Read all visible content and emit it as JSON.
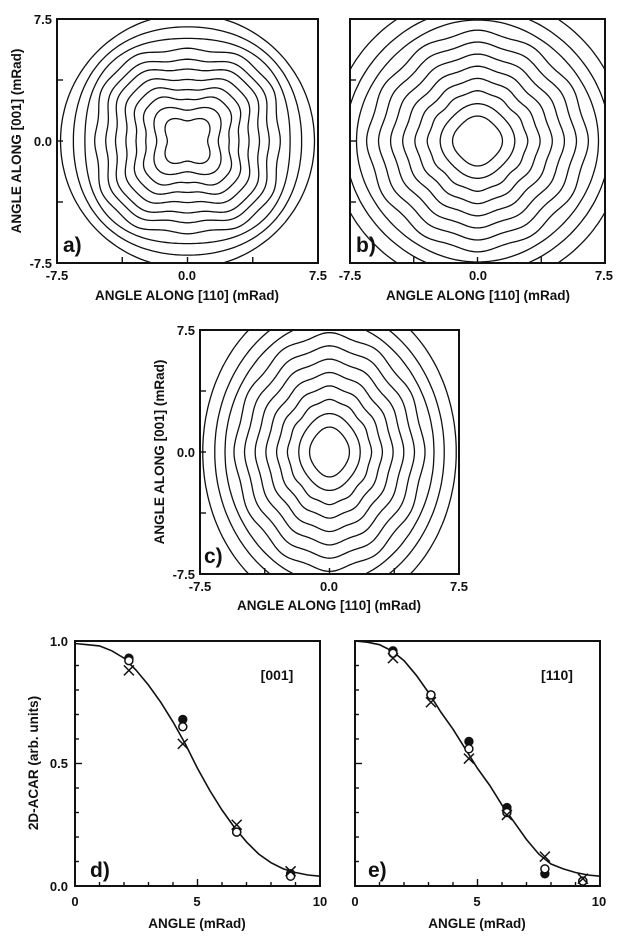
{
  "chart_data": [
    {
      "id": "a",
      "type": "contour",
      "panel_label": "a)",
      "xlabel": "ANGLE ALONG [110] (mRad)",
      "ylabel": "ANGLE ALONG [001] (mRad)",
      "xlim": [
        -7.5,
        7.5
      ],
      "ylim": [
        -7.5,
        7.5
      ],
      "x_tick_labels": [
        "-7.5",
        "0.0",
        "7.5"
      ],
      "y_tick_labels": [
        "-7.5",
        "0.0",
        "7.5"
      ],
      "anisotropy": "four-fold square, concave inner contours",
      "contour_levels": 11
    },
    {
      "id": "b",
      "type": "contour",
      "panel_label": "b)",
      "xlabel": "ANGLE ALONG [110] (mRad)",
      "xlim": [
        -7.5,
        7.5
      ],
      "ylim": [
        -7.5,
        7.5
      ],
      "x_tick_labels": [
        "-7.5",
        "0.0",
        "7.5"
      ],
      "anisotropy": "near-circular, slightly square",
      "contour_levels": 11
    },
    {
      "id": "c",
      "type": "contour",
      "panel_label": "c)",
      "xlabel": "ANGLE ALONG [110] (mRad)",
      "ylabel": "ANGLE ALONG [001] (mRad)",
      "xlim": [
        -7.5,
        7.5
      ],
      "ylim": [
        -7.5,
        7.5
      ],
      "x_tick_labels": [
        "-7.5",
        "0.0",
        "7.5"
      ],
      "y_tick_labels": [
        "-7.5",
        "0.0",
        "7.5"
      ],
      "anisotropy": "near-circular, slightly elongated along [001]",
      "contour_levels": 11
    },
    {
      "id": "d",
      "type": "line",
      "panel_label": "d)",
      "legend_label": "[001]",
      "xlabel": "ANGLE (mRad)",
      "ylabel": "2D-ACAR (arb. units)",
      "xlim": [
        0,
        10
      ],
      "ylim": [
        0,
        1
      ],
      "x_tick_labels": [
        "0",
        "5",
        "10"
      ],
      "y_tick_labels": [
        "0.0",
        "0.5",
        "1.0"
      ],
      "curve": {
        "x": [
          0.0,
          0.5,
          1.0,
          1.5,
          2.0,
          2.5,
          3.0,
          3.5,
          4.0,
          4.5,
          5.0,
          5.5,
          6.0,
          6.5,
          7.0,
          7.5,
          8.0,
          8.5,
          9.0,
          9.5,
          10.0
        ],
        "y": [
          0.99,
          0.985,
          0.98,
          0.96,
          0.93,
          0.88,
          0.82,
          0.75,
          0.67,
          0.58,
          0.48,
          0.39,
          0.31,
          0.24,
          0.18,
          0.13,
          0.095,
          0.07,
          0.055,
          0.045,
          0.04
        ]
      },
      "series": [
        {
          "marker": "filled-circle",
          "x": [
            2.2,
            4.4,
            6.6,
            8.8
          ],
          "y": [
            0.93,
            0.68,
            0.22,
            0.05
          ]
        },
        {
          "marker": "open-circle",
          "x": [
            2.2,
            4.4,
            6.6,
            8.8
          ],
          "y": [
            0.92,
            0.65,
            0.22,
            0.04
          ]
        },
        {
          "marker": "cross",
          "x": [
            2.2,
            4.4,
            6.6,
            8.8
          ],
          "y": [
            0.88,
            0.58,
            0.25,
            0.06
          ]
        }
      ]
    },
    {
      "id": "e",
      "type": "line",
      "panel_label": "e)",
      "legend_label": "[110]",
      "xlabel": "ANGLE (mRad)",
      "xlim": [
        0,
        10
      ],
      "ylim": [
        0,
        1
      ],
      "x_tick_labels": [
        "0",
        "5",
        "10"
      ],
      "curve": {
        "x": [
          0.0,
          0.5,
          1.0,
          1.5,
          2.0,
          2.5,
          3.0,
          3.5,
          4.0,
          4.5,
          5.0,
          5.5,
          6.0,
          6.5,
          7.0,
          7.5,
          8.0,
          8.5,
          9.0,
          9.5,
          10.0
        ],
        "y": [
          1.0,
          0.995,
          0.985,
          0.96,
          0.92,
          0.86,
          0.79,
          0.71,
          0.64,
          0.56,
          0.48,
          0.41,
          0.33,
          0.26,
          0.19,
          0.13,
          0.09,
          0.07,
          0.055,
          0.045,
          0.04
        ]
      },
      "series": [
        {
          "marker": "filled-circle",
          "x": [
            1.55,
            3.1,
            4.65,
            6.2,
            7.75,
            9.3
          ],
          "y": [
            0.96,
            0.78,
            0.59,
            0.32,
            0.05,
            0.02
          ]
        },
        {
          "marker": "open-circle",
          "x": [
            1.55,
            3.1,
            4.65,
            6.2,
            7.75,
            9.3
          ],
          "y": [
            0.95,
            0.78,
            0.56,
            0.3,
            0.07,
            0.02
          ]
        },
        {
          "marker": "cross",
          "x": [
            1.55,
            3.1,
            4.65,
            6.2,
            7.75,
            9.3
          ],
          "y": [
            0.93,
            0.75,
            0.52,
            0.29,
            0.12,
            0.03
          ]
        }
      ]
    }
  ]
}
